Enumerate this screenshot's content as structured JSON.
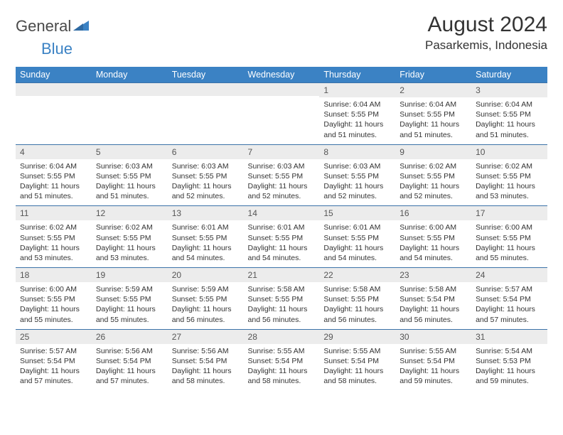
{
  "logo": {
    "gray": "General",
    "blue": "Blue"
  },
  "title": "August 2024",
  "location": "Pasarkemis, Indonesia",
  "colors": {
    "header_bg": "#3b82c4",
    "header_text": "#ffffff",
    "daynum_bg": "#ececec",
    "cell_border": "#3b72a8",
    "text": "#333333",
    "logo_gray": "#4a4a4a",
    "logo_blue": "#3b82c4",
    "background": "#ffffff"
  },
  "typography": {
    "title_fontsize": 30,
    "location_fontsize": 17,
    "header_fontsize": 12.5,
    "daynum_fontsize": 12,
    "body_fontsize": 10.5,
    "font_family": "Arial"
  },
  "day_headers": [
    "Sunday",
    "Monday",
    "Tuesday",
    "Wednesday",
    "Thursday",
    "Friday",
    "Saturday"
  ],
  "weeks": [
    [
      {
        "num": "",
        "lines": [
          "",
          "",
          "",
          ""
        ],
        "empty": true
      },
      {
        "num": "",
        "lines": [
          "",
          "",
          "",
          ""
        ],
        "empty": true
      },
      {
        "num": "",
        "lines": [
          "",
          "",
          "",
          ""
        ],
        "empty": true
      },
      {
        "num": "",
        "lines": [
          "",
          "",
          "",
          ""
        ],
        "empty": true
      },
      {
        "num": "1",
        "lines": [
          "Sunrise: 6:04 AM",
          "Sunset: 5:55 PM",
          "Daylight: 11 hours",
          "and 51 minutes."
        ]
      },
      {
        "num": "2",
        "lines": [
          "Sunrise: 6:04 AM",
          "Sunset: 5:55 PM",
          "Daylight: 11 hours",
          "and 51 minutes."
        ]
      },
      {
        "num": "3",
        "lines": [
          "Sunrise: 6:04 AM",
          "Sunset: 5:55 PM",
          "Daylight: 11 hours",
          "and 51 minutes."
        ]
      }
    ],
    [
      {
        "num": "4",
        "lines": [
          "Sunrise: 6:04 AM",
          "Sunset: 5:55 PM",
          "Daylight: 11 hours",
          "and 51 minutes."
        ]
      },
      {
        "num": "5",
        "lines": [
          "Sunrise: 6:03 AM",
          "Sunset: 5:55 PM",
          "Daylight: 11 hours",
          "and 51 minutes."
        ]
      },
      {
        "num": "6",
        "lines": [
          "Sunrise: 6:03 AM",
          "Sunset: 5:55 PM",
          "Daylight: 11 hours",
          "and 52 minutes."
        ]
      },
      {
        "num": "7",
        "lines": [
          "Sunrise: 6:03 AM",
          "Sunset: 5:55 PM",
          "Daylight: 11 hours",
          "and 52 minutes."
        ]
      },
      {
        "num": "8",
        "lines": [
          "Sunrise: 6:03 AM",
          "Sunset: 5:55 PM",
          "Daylight: 11 hours",
          "and 52 minutes."
        ]
      },
      {
        "num": "9",
        "lines": [
          "Sunrise: 6:02 AM",
          "Sunset: 5:55 PM",
          "Daylight: 11 hours",
          "and 52 minutes."
        ]
      },
      {
        "num": "10",
        "lines": [
          "Sunrise: 6:02 AM",
          "Sunset: 5:55 PM",
          "Daylight: 11 hours",
          "and 53 minutes."
        ]
      }
    ],
    [
      {
        "num": "11",
        "lines": [
          "Sunrise: 6:02 AM",
          "Sunset: 5:55 PM",
          "Daylight: 11 hours",
          "and 53 minutes."
        ]
      },
      {
        "num": "12",
        "lines": [
          "Sunrise: 6:02 AM",
          "Sunset: 5:55 PM",
          "Daylight: 11 hours",
          "and 53 minutes."
        ]
      },
      {
        "num": "13",
        "lines": [
          "Sunrise: 6:01 AM",
          "Sunset: 5:55 PM",
          "Daylight: 11 hours",
          "and 54 minutes."
        ]
      },
      {
        "num": "14",
        "lines": [
          "Sunrise: 6:01 AM",
          "Sunset: 5:55 PM",
          "Daylight: 11 hours",
          "and 54 minutes."
        ]
      },
      {
        "num": "15",
        "lines": [
          "Sunrise: 6:01 AM",
          "Sunset: 5:55 PM",
          "Daylight: 11 hours",
          "and 54 minutes."
        ]
      },
      {
        "num": "16",
        "lines": [
          "Sunrise: 6:00 AM",
          "Sunset: 5:55 PM",
          "Daylight: 11 hours",
          "and 54 minutes."
        ]
      },
      {
        "num": "17",
        "lines": [
          "Sunrise: 6:00 AM",
          "Sunset: 5:55 PM",
          "Daylight: 11 hours",
          "and 55 minutes."
        ]
      }
    ],
    [
      {
        "num": "18",
        "lines": [
          "Sunrise: 6:00 AM",
          "Sunset: 5:55 PM",
          "Daylight: 11 hours",
          "and 55 minutes."
        ]
      },
      {
        "num": "19",
        "lines": [
          "Sunrise: 5:59 AM",
          "Sunset: 5:55 PM",
          "Daylight: 11 hours",
          "and 55 minutes."
        ]
      },
      {
        "num": "20",
        "lines": [
          "Sunrise: 5:59 AM",
          "Sunset: 5:55 PM",
          "Daylight: 11 hours",
          "and 56 minutes."
        ]
      },
      {
        "num": "21",
        "lines": [
          "Sunrise: 5:58 AM",
          "Sunset: 5:55 PM",
          "Daylight: 11 hours",
          "and 56 minutes."
        ]
      },
      {
        "num": "22",
        "lines": [
          "Sunrise: 5:58 AM",
          "Sunset: 5:55 PM",
          "Daylight: 11 hours",
          "and 56 minutes."
        ]
      },
      {
        "num": "23",
        "lines": [
          "Sunrise: 5:58 AM",
          "Sunset: 5:54 PM",
          "Daylight: 11 hours",
          "and 56 minutes."
        ]
      },
      {
        "num": "24",
        "lines": [
          "Sunrise: 5:57 AM",
          "Sunset: 5:54 PM",
          "Daylight: 11 hours",
          "and 57 minutes."
        ]
      }
    ],
    [
      {
        "num": "25",
        "lines": [
          "Sunrise: 5:57 AM",
          "Sunset: 5:54 PM",
          "Daylight: 11 hours",
          "and 57 minutes."
        ]
      },
      {
        "num": "26",
        "lines": [
          "Sunrise: 5:56 AM",
          "Sunset: 5:54 PM",
          "Daylight: 11 hours",
          "and 57 minutes."
        ]
      },
      {
        "num": "27",
        "lines": [
          "Sunrise: 5:56 AM",
          "Sunset: 5:54 PM",
          "Daylight: 11 hours",
          "and 58 minutes."
        ]
      },
      {
        "num": "28",
        "lines": [
          "Sunrise: 5:55 AM",
          "Sunset: 5:54 PM",
          "Daylight: 11 hours",
          "and 58 minutes."
        ]
      },
      {
        "num": "29",
        "lines": [
          "Sunrise: 5:55 AM",
          "Sunset: 5:54 PM",
          "Daylight: 11 hours",
          "and 58 minutes."
        ]
      },
      {
        "num": "30",
        "lines": [
          "Sunrise: 5:55 AM",
          "Sunset: 5:54 PM",
          "Daylight: 11 hours",
          "and 59 minutes."
        ]
      },
      {
        "num": "31",
        "lines": [
          "Sunrise: 5:54 AM",
          "Sunset: 5:53 PM",
          "Daylight: 11 hours",
          "and 59 minutes."
        ]
      }
    ]
  ]
}
